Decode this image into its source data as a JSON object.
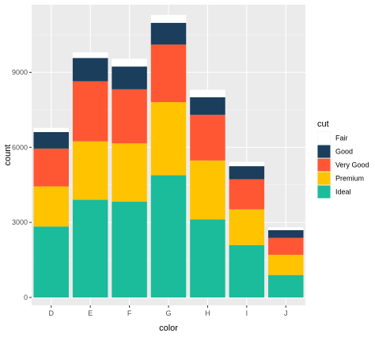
{
  "chart_data": {
    "type": "bar",
    "stacked": true,
    "title": "",
    "xlabel": "color",
    "ylabel": "count",
    "categories": [
      "D",
      "E",
      "F",
      "G",
      "H",
      "I",
      "J"
    ],
    "ylim": [
      0,
      11700
    ],
    "y_ticks": [
      0,
      3000,
      6000,
      9000
    ],
    "y_tick_labels": [
      "0",
      "3000",
      "6000",
      "9000"
    ],
    "grid": true,
    "legend": {
      "title": "cut",
      "position": "right"
    },
    "series": [
      {
        "name": "Fair",
        "color": "#ffffff",
        "values": [
          163,
          224,
          312,
          314,
          303,
          175,
          119
        ]
      },
      {
        "name": "Good",
        "color": "#1b3e5c",
        "values": [
          662,
          933,
          909,
          871,
          702,
          522,
          307
        ]
      },
      {
        "name": "Very Good",
        "color": "#ff5733",
        "values": [
          1513,
          2400,
          2164,
          2299,
          1824,
          1204,
          678
        ]
      },
      {
        "name": "Premium",
        "color": "#ffc300",
        "values": [
          1603,
          2337,
          2331,
          2924,
          2360,
          1428,
          808
        ]
      },
      {
        "name": "Ideal",
        "color": "#1abc9c",
        "values": [
          2834,
          3903,
          3826,
          4884,
          3115,
          2093,
          896
        ]
      }
    ]
  }
}
